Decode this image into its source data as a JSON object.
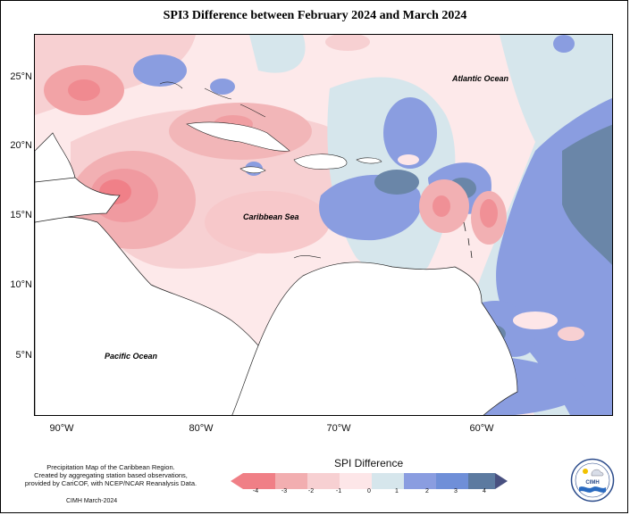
{
  "title": "SPI3 Difference between February 2024 and March 2024",
  "axes": {
    "latitude_labels": [
      "25°N",
      "20°N",
      "15°N",
      "10°N",
      "5°N"
    ],
    "longitude_labels": [
      "90°W",
      "80°W",
      "70°W",
      "60°W"
    ]
  },
  "map_labels": {
    "atlantic": "Atlantic Ocean",
    "caribbean": "Caribbean Sea",
    "pacific": "Pacific Ocean"
  },
  "legend": {
    "title": "SPI Difference",
    "ticks": [
      "-4",
      "-3",
      "-2",
      "-1",
      "0",
      "1",
      "2",
      "3",
      "4"
    ],
    "colors": [
      "#f07f86",
      "#f2aeb0",
      "#f7d0d2",
      "#fde6e8",
      "#d6e6ec",
      "#8a9de0",
      "#6f8fd8",
      "#5c7aa0",
      "#485080"
    ]
  },
  "credit": {
    "text": "Precipitation Map of the Caribbean Region.\nCreated by aggregating station based observations,\nprovided by CariCOF, with NCEP/NCAR Reanalysis Data.",
    "date": "CIMH March-2024"
  },
  "logo": {
    "text": "CIMH",
    "icon": "cimh-logo-icon"
  },
  "colors": {
    "neutral": "#fde6e8",
    "light_blue": "#d6e6ec",
    "blue": "#8a9de0",
    "dark_blue": "#6a86a8",
    "pink": "#f7d0d2",
    "red": "#f2a3a6"
  }
}
